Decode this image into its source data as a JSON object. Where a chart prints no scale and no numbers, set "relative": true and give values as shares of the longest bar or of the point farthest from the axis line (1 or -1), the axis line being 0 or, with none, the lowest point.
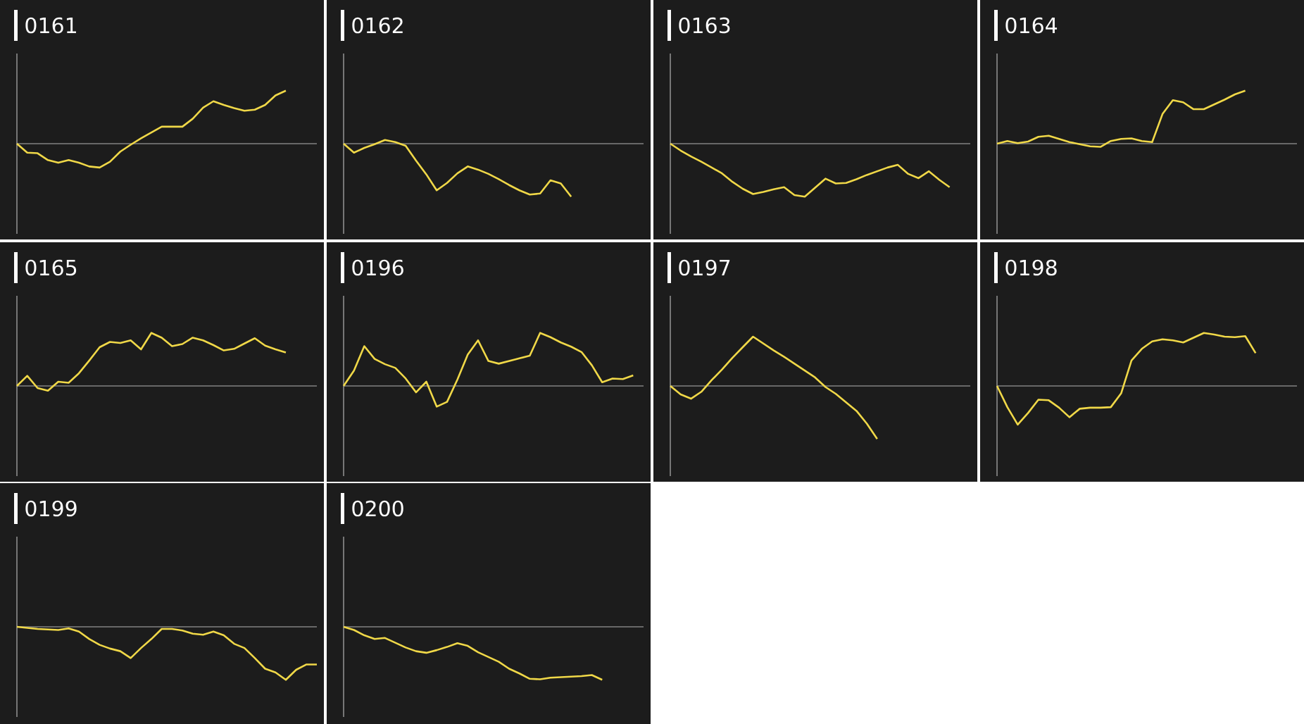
{
  "chart_data": [
    {
      "type": "line",
      "title": "0161",
      "relative": true,
      "categories": [
        null,
        null,
        null,
        null,
        null,
        null,
        null,
        null,
        null,
        null,
        null,
        null,
        null,
        null,
        null,
        null,
        null,
        null,
        null,
        null,
        null,
        null,
        null,
        null,
        null,
        null,
        null,
        null,
        null,
        null
      ],
      "series": [
        {
          "color": "#f0d848",
          "values": [
            0,
            -0.17,
            -0.18,
            -0.31,
            -0.36,
            -0.31,
            -0.36,
            -0.43,
            -0.45,
            -0.34,
            -0.15,
            -0.02,
            0.1,
            0.21,
            0.32,
            0.32,
            0.32,
            0.47,
            0.68,
            0.8,
            0.73,
            0.67,
            0.62,
            0.64,
            0.73,
            0.91,
            1,
            null,
            null,
            null
          ]
        }
      ]
    },
    {
      "type": "line",
      "title": "0162",
      "relative": true,
      "categories": [
        null,
        null,
        null,
        null,
        null,
        null,
        null,
        null,
        null,
        null,
        null,
        null,
        null,
        null,
        null,
        null,
        null,
        null,
        null,
        null,
        null,
        null,
        null,
        null,
        null,
        null,
        null,
        null,
        null,
        null
      ],
      "series": [
        {
          "color": "#f0d848",
          "values": [
            0,
            -0.17,
            -0.08,
            -0.01,
            0.07,
            0.03,
            -0.04,
            -0.32,
            -0.58,
            -0.88,
            -0.74,
            -0.56,
            -0.43,
            -0.49,
            -0.57,
            -0.67,
            -0.78,
            -0.88,
            -0.96,
            -0.94,
            -0.69,
            -0.75,
            -1,
            null,
            null,
            null,
            null,
            null,
            null,
            null
          ]
        }
      ]
    },
    {
      "type": "line",
      "title": "0163",
      "relative": true,
      "categories": [
        null,
        null,
        null,
        null,
        null,
        null,
        null,
        null,
        null,
        null,
        null,
        null,
        null,
        null,
        null,
        null,
        null,
        null,
        null,
        null,
        null,
        null,
        null,
        null,
        null,
        null,
        null,
        null,
        null,
        null
      ],
      "series": [
        {
          "color": "#f0d848",
          "values": [
            0,
            -0.13,
            -0.24,
            -0.34,
            -0.45,
            -0.56,
            -0.72,
            -0.85,
            -0.95,
            -0.91,
            -0.86,
            -0.82,
            -0.97,
            -1,
            -0.83,
            -0.66,
            -0.75,
            -0.74,
            -0.67,
            -0.59,
            -0.52,
            -0.45,
            -0.4,
            -0.57,
            -0.65,
            -0.52,
            -0.68,
            -0.82,
            null,
            null
          ]
        }
      ]
    },
    {
      "type": "line",
      "title": "0164",
      "relative": true,
      "categories": [
        null,
        null,
        null,
        null,
        null,
        null,
        null,
        null,
        null,
        null,
        null,
        null,
        null,
        null,
        null,
        null,
        null,
        null,
        null,
        null,
        null,
        null,
        null,
        null,
        null,
        null,
        null,
        null,
        null,
        null
      ],
      "series": [
        {
          "color": "#f0d848",
          "values": [
            0,
            0.05,
            0.01,
            0.04,
            0.13,
            0.15,
            0.09,
            0.03,
            -0.01,
            -0.05,
            -0.06,
            0.05,
            0.09,
            0.1,
            0.05,
            0.03,
            0.56,
            0.82,
            0.78,
            0.65,
            0.65,
            0.74,
            0.83,
            0.93,
            1,
            null,
            null,
            null,
            null,
            null
          ]
        }
      ]
    },
    {
      "type": "line",
      "title": "0165",
      "relative": true,
      "categories": [
        null,
        null,
        null,
        null,
        null,
        null,
        null,
        null,
        null,
        null,
        null,
        null,
        null,
        null,
        null,
        null,
        null,
        null,
        null,
        null,
        null,
        null,
        null,
        null,
        null,
        null,
        null,
        null,
        null,
        null
      ],
      "series": [
        {
          "color": "#f0d848",
          "values": [
            0,
            0.19,
            -0.04,
            -0.09,
            0.08,
            0.06,
            0.24,
            0.48,
            0.73,
            0.83,
            0.81,
            0.86,
            0.69,
            1,
            0.91,
            0.75,
            0.79,
            0.91,
            0.86,
            0.77,
            0.67,
            0.7,
            0.8,
            0.9,
            0.76,
            0.69,
            0.63,
            null,
            null,
            null
          ]
        }
      ]
    },
    {
      "type": "line",
      "title": "0196",
      "relative": true,
      "categories": [
        null,
        null,
        null,
        null,
        null,
        null,
        null,
        null,
        null,
        null,
        null,
        null,
        null,
        null,
        null,
        null,
        null,
        null,
        null,
        null,
        null,
        null,
        null,
        null,
        null,
        null,
        null,
        null,
        null,
        null
      ],
      "series": [
        {
          "color": "#f0d848",
          "values": [
            0,
            0.29,
            0.75,
            0.51,
            0.41,
            0.34,
            0.14,
            -0.12,
            0.08,
            -0.39,
            -0.3,
            0.12,
            0.59,
            0.86,
            0.47,
            0.42,
            0.47,
            0.52,
            0.57,
            1,
            0.92,
            0.82,
            0.74,
            0.64,
            0.39,
            0.07,
            0.14,
            0.13,
            0.2,
            null
          ]
        }
      ]
    },
    {
      "type": "line",
      "title": "0197",
      "relative": true,
      "categories": [
        null,
        null,
        null,
        null,
        null,
        null,
        null,
        null,
        null,
        null,
        null,
        null,
        null,
        null,
        null,
        null,
        null,
        null,
        null,
        null,
        null,
        null,
        null,
        null,
        null,
        null,
        null,
        null,
        null,
        null
      ],
      "series": [
        {
          "color": "#f0d848",
          "values": [
            0,
            -0.16,
            -0.24,
            -0.11,
            0.11,
            0.31,
            0.53,
            0.73,
            0.93,
            0.8,
            0.67,
            0.55,
            0.42,
            0.29,
            0.16,
            -0.02,
            -0.15,
            -0.31,
            -0.47,
            -0.71,
            -1,
            null,
            null,
            null,
            null,
            null,
            null,
            null,
            null,
            null
          ]
        }
      ]
    },
    {
      "type": "line",
      "title": "0198",
      "relative": true,
      "categories": [
        null,
        null,
        null,
        null,
        null,
        null,
        null,
        null,
        null,
        null,
        null,
        null,
        null,
        null,
        null,
        null,
        null,
        null,
        null,
        null,
        null,
        null,
        null,
        null,
        null,
        null,
        null,
        null,
        null,
        null
      ],
      "series": [
        {
          "color": "#f0d848",
          "values": [
            0,
            -0.4,
            -0.73,
            -0.51,
            -0.26,
            -0.27,
            -0.41,
            -0.59,
            -0.43,
            -0.41,
            -0.41,
            -0.4,
            -0.14,
            0.48,
            0.7,
            0.84,
            0.88,
            0.86,
            0.82,
            0.91,
            1,
            0.97,
            0.93,
            0.92,
            0.94,
            0.62,
            null,
            null,
            null,
            null
          ]
        }
      ]
    },
    {
      "type": "line",
      "title": "0199",
      "relative": true,
      "categories": [
        null,
        null,
        null,
        null,
        null,
        null,
        null,
        null,
        null,
        null,
        null,
        null,
        null,
        null,
        null,
        null,
        null,
        null,
        null,
        null,
        null,
        null,
        null,
        null,
        null,
        null,
        null,
        null,
        null,
        null
      ],
      "series": [
        {
          "color": "#f0d848",
          "values": [
            0,
            -0.02,
            -0.04,
            -0.05,
            -0.06,
            -0.03,
            -0.09,
            -0.23,
            -0.34,
            -0.41,
            -0.46,
            -0.59,
            -0.4,
            -0.23,
            -0.04,
            -0.04,
            -0.07,
            -0.13,
            -0.15,
            -0.09,
            -0.16,
            -0.32,
            -0.4,
            -0.59,
            -0.79,
            -0.86,
            -1,
            -0.81,
            -0.71,
            -0.71
          ]
        }
      ]
    },
    {
      "type": "line",
      "title": "0200",
      "relative": true,
      "categories": [
        null,
        null,
        null,
        null,
        null,
        null,
        null,
        null,
        null,
        null,
        null,
        null,
        null,
        null,
        null,
        null,
        null,
        null,
        null,
        null,
        null,
        null,
        null,
        null,
        null,
        null,
        null,
        null,
        null,
        null
      ],
      "series": [
        {
          "color": "#f0d848",
          "values": [
            0,
            -0.06,
            -0.16,
            -0.23,
            -0.21,
            -0.3,
            -0.39,
            -0.46,
            -0.49,
            -0.44,
            -0.38,
            -0.31,
            -0.36,
            -0.48,
            -0.57,
            -0.66,
            -0.79,
            -0.88,
            -0.98,
            -0.99,
            -0.96,
            -0.95,
            -0.94,
            -0.93,
            -0.91,
            -1,
            null,
            null,
            null,
            null
          ]
        }
      ]
    }
  ]
}
